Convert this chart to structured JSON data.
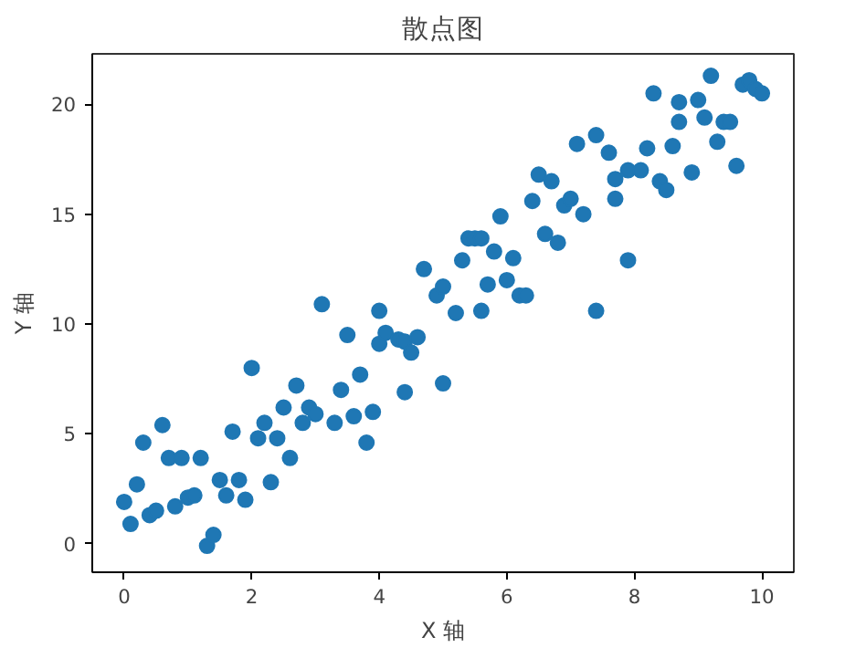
{
  "chart_data": {
    "type": "scatter",
    "title": "散点图",
    "xlabel": "X 轴",
    "ylabel": "Y 轴",
    "x": [
      0,
      0.1,
      0.2,
      0.3,
      0.4,
      0.5,
      0.6,
      0.7,
      0.8,
      0.9,
      1.0,
      1.1,
      1.2,
      1.3,
      1.4,
      1.5,
      1.6,
      1.7,
      1.8,
      1.9,
      2.0,
      2.1,
      2.2,
      2.3,
      2.4,
      2.5,
      2.6,
      2.7,
      2.8,
      2.9,
      3.0,
      3.1,
      3.3,
      3.4,
      3.5,
      3.6,
      3.7,
      3.8,
      3.9,
      4.0,
      4.0,
      4.1,
      4.3,
      4.4,
      4.4,
      4.5,
      4.6,
      4.7,
      4.9,
      5.0,
      5.0,
      5.2,
      5.3,
      5.4,
      5.5,
      5.6,
      5.6,
      5.7,
      5.8,
      5.9,
      6.0,
      6.1,
      6.2,
      6.3,
      6.4,
      6.5,
      6.6,
      6.7,
      6.8,
      6.9,
      7.0,
      7.1,
      7.2,
      7.4,
      7.4,
      7.6,
      7.7,
      7.7,
      7.9,
      7.9,
      8.1,
      8.2,
      8.3,
      8.4,
      8.5,
      8.6,
      8.7,
      8.7,
      8.9,
      9.0,
      9.1,
      9.2,
      9.3,
      9.4,
      9.5,
      9.6,
      9.7,
      9.8,
      9.9,
      10.0
    ],
    "series": [
      {
        "color": "#1f77b4",
        "values": [
          1.9,
          0.9,
          2.7,
          4.6,
          1.3,
          1.5,
          5.4,
          3.9,
          1.7,
          3.9,
          2.1,
          2.2,
          3.9,
          -0.1,
          0.4,
          2.9,
          2.2,
          5.1,
          2.9,
          2.0,
          8.0,
          4.8,
          5.5,
          2.8,
          4.8,
          6.2,
          3.9,
          7.2,
          5.5,
          6.2,
          5.9,
          10.9,
          5.5,
          7.0,
          9.5,
          5.8,
          7.7,
          4.6,
          6.0,
          9.1,
          10.6,
          9.6,
          9.3,
          9.2,
          6.9,
          8.7,
          9.4,
          12.5,
          11.3,
          7.3,
          11.7,
          10.5,
          12.9,
          13.9,
          13.9,
          13.9,
          10.6,
          11.8,
          13.3,
          14.9,
          12.0,
          13.0,
          11.3,
          11.3,
          15.6,
          16.8,
          14.1,
          16.5,
          13.7,
          15.4,
          15.7,
          18.2,
          15.0,
          18.6,
          10.6,
          17.8,
          16.6,
          15.7,
          17.0,
          12.9,
          17.0,
          18.0,
          20.5,
          16.5,
          16.1,
          18.1,
          20.1,
          19.2,
          16.9,
          20.2,
          19.4,
          21.3,
          18.3,
          19.2,
          19.2,
          17.2,
          20.9,
          21.1,
          20.7,
          20.5
        ]
      }
    ],
    "xlim": [
      -0.5,
      10.5
    ],
    "ylim": [
      -1.3,
      22.3
    ],
    "xticks": [
      0,
      2,
      4,
      6,
      8,
      10
    ],
    "yticks": [
      0,
      5,
      10,
      15,
      20
    ],
    "marker": "circle",
    "grid": false
  }
}
